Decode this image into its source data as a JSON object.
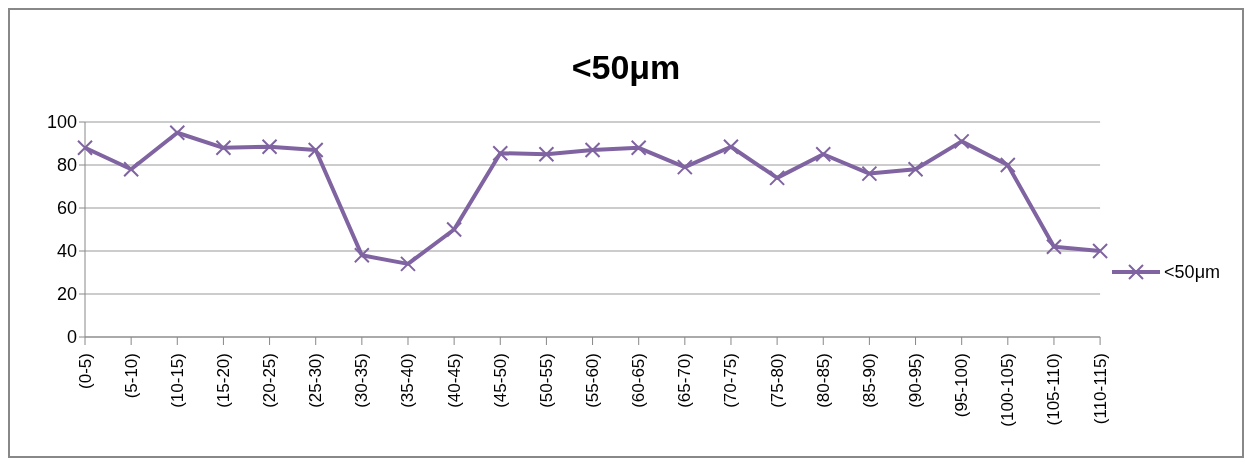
{
  "chart_data": {
    "type": "line",
    "title": "<50μm",
    "categories": [
      "(0-5)",
      "(5-10)",
      "(10-15)",
      "(15-20)",
      "(20-25)",
      "(25-30)",
      "(30-35)",
      "(35-40)",
      "(40-45)",
      "(45-50)",
      "(50-55)",
      "(55-60)",
      "(60-65)",
      "(65-70)",
      "(70-75)",
      "(75-80)",
      "(80-85)",
      "(85-90)",
      "(90-95)",
      "(95-100)",
      "(100-105)",
      "(105-110)",
      "(110-115)"
    ],
    "series": [
      {
        "name": "<50μm",
        "color": "#8064a2",
        "values": [
          88,
          78,
          95,
          88,
          88.5,
          87,
          38,
          34,
          50,
          85.5,
          85,
          87,
          88,
          79,
          88.5,
          74,
          85,
          76,
          78,
          91,
          80,
          42,
          40
        ]
      }
    ],
    "ylim": [
      0,
      100
    ],
    "yticks": [
      0,
      20,
      40,
      60,
      80,
      100
    ],
    "grid": "y",
    "legend": "right",
    "marker": "cross",
    "line_style": "solid"
  }
}
